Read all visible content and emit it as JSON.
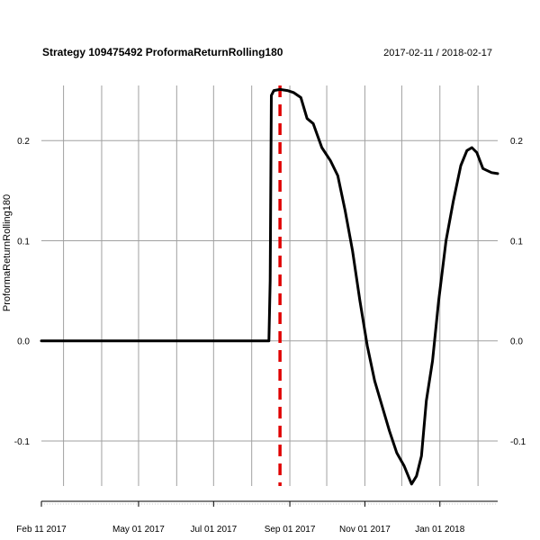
{
  "chart_data": {
    "type": "line",
    "title": "Strategy 109475492 ProformaReturnRolling180",
    "date_range": "2017-02-11 / 2018-02-17",
    "xlabel": "",
    "ylabel": "ProformaReturnRolling180",
    "x_range": [
      "2017-02-11",
      "2018-02-17"
    ],
    "ylim": [
      -0.145,
      0.255
    ],
    "y_ticks": [
      {
        "value": -0.1,
        "label": "-0.1"
      },
      {
        "value": 0.0,
        "label": "0.0"
      },
      {
        "value": 0.1,
        "label": "0.1"
      },
      {
        "value": 0.2,
        "label": "0.2"
      }
    ],
    "x_ticks": [
      {
        "date": "2017-02-11",
        "label": "Feb 11 2017"
      },
      {
        "date": "2017-05-01",
        "label": "May 01 2017"
      },
      {
        "date": "2017-07-01",
        "label": "Jul 01 2017"
      },
      {
        "date": "2017-09-01",
        "label": "Sep 01 2017"
      },
      {
        "date": "2017-11-01",
        "label": "Nov 01 2017"
      },
      {
        "date": "2018-01-01",
        "label": "Jan 01 2018"
      }
    ],
    "grid_dates": [
      "2017-03-01",
      "2017-04-01",
      "2017-05-01",
      "2017-06-01",
      "2017-07-01",
      "2017-08-01",
      "2017-09-01",
      "2017-10-01",
      "2017-11-01",
      "2017-12-01",
      "2018-01-01",
      "2018-02-01"
    ],
    "grid": true,
    "series": [
      {
        "color": "#000000",
        "points": [
          [
            "2017-02-11",
            0.0
          ],
          [
            "2017-08-15",
            0.0
          ],
          [
            "2017-08-16",
            0.06
          ],
          [
            "2017-08-17",
            0.245
          ],
          [
            "2017-08-19",
            0.25
          ],
          [
            "2017-08-24",
            0.251
          ],
          [
            "2017-08-30",
            0.25
          ],
          [
            "2017-09-04",
            0.248
          ],
          [
            "2017-09-10",
            0.243
          ],
          [
            "2017-09-15",
            0.222
          ],
          [
            "2017-09-20",
            0.217
          ],
          [
            "2017-09-27",
            0.193
          ],
          [
            "2017-10-04",
            0.18
          ],
          [
            "2017-10-10",
            0.165
          ],
          [
            "2017-10-16",
            0.13
          ],
          [
            "2017-10-22",
            0.09
          ],
          [
            "2017-10-28",
            0.04
          ],
          [
            "2017-11-03",
            -0.005
          ],
          [
            "2017-11-09",
            -0.04
          ],
          [
            "2017-11-15",
            -0.065
          ],
          [
            "2017-11-21",
            -0.09
          ],
          [
            "2017-11-27",
            -0.112
          ],
          [
            "2017-12-03",
            -0.125
          ],
          [
            "2017-12-09",
            -0.143
          ],
          [
            "2017-12-13",
            -0.135
          ],
          [
            "2017-12-17",
            -0.115
          ],
          [
            "2017-12-21",
            -0.06
          ],
          [
            "2017-12-26",
            -0.02
          ],
          [
            "2017-12-31",
            0.04
          ],
          [
            "2018-01-06",
            0.1
          ],
          [
            "2018-01-12",
            0.14
          ],
          [
            "2018-01-18",
            0.175
          ],
          [
            "2018-01-23",
            0.19
          ],
          [
            "2018-01-27",
            0.193
          ],
          [
            "2018-01-31",
            0.188
          ],
          [
            "2018-02-05",
            0.172
          ],
          [
            "2018-02-12",
            0.168
          ],
          [
            "2018-02-17",
            0.167
          ]
        ]
      }
    ],
    "event_line": {
      "date": "2017-08-24",
      "color": "#e00000",
      "style": "dashed"
    }
  }
}
